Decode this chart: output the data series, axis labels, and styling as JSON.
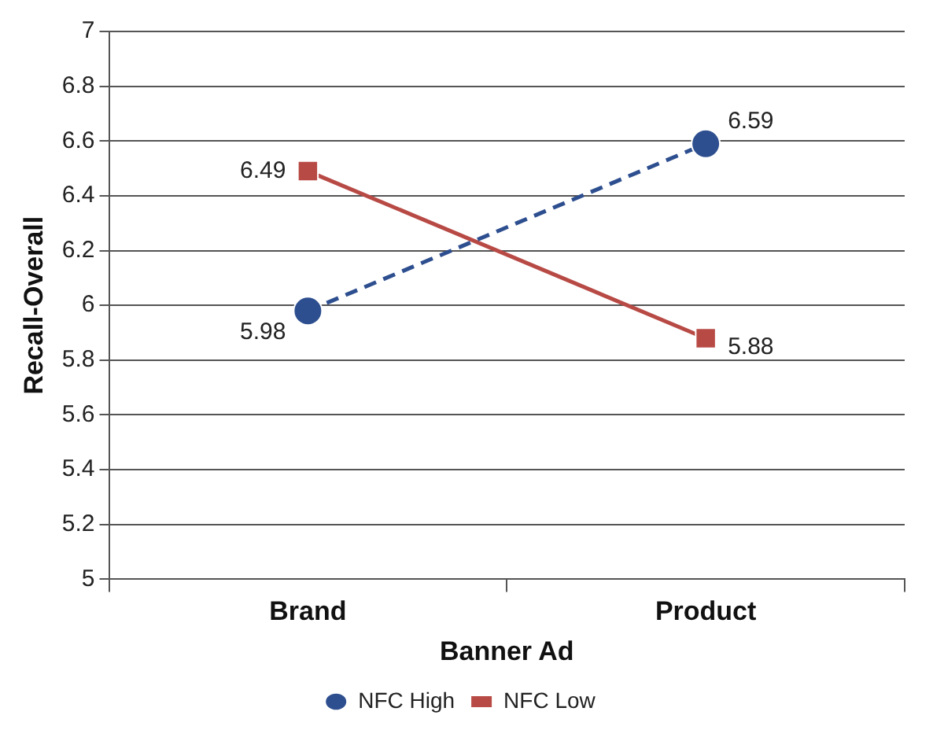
{
  "chart_data": {
    "type": "line",
    "xlabel": "Banner Ad",
    "ylabel": "Recall-Overall",
    "categories": [
      "Brand",
      "Product"
    ],
    "series": [
      {
        "name": "NFC High",
        "color": "#2e4f8f",
        "values": [
          5.98,
          6.59
        ],
        "marker": "circle",
        "line_style": "dashed"
      },
      {
        "name": "NFC Low",
        "color": "#b84a45",
        "values": [
          6.49,
          5.88
        ],
        "marker": "square",
        "line_style": "solid"
      }
    ],
    "ylim": [
      5,
      7
    ],
    "yticks": [
      5,
      5.2,
      5.4,
      5.6,
      5.8,
      6,
      6.2,
      6.4,
      6.6,
      6.8,
      7
    ],
    "grid": "y",
    "legend": "bottom",
    "data_labels": true
  }
}
